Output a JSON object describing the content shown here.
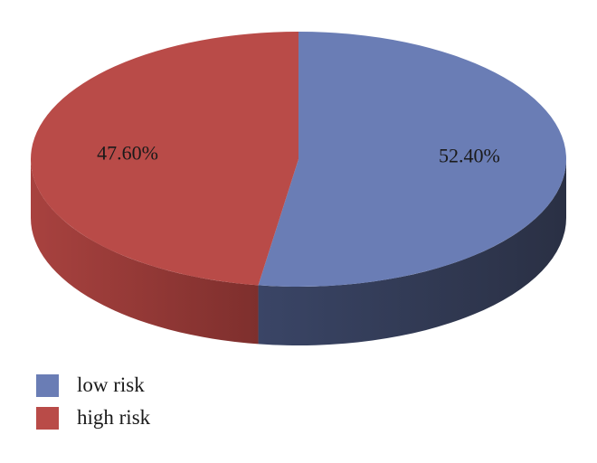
{
  "chart_data": {
    "type": "pie",
    "title": "",
    "categories": [
      "low risk",
      "high risk"
    ],
    "values": [
      52.4,
      47.6
    ],
    "data_labels": [
      "52.40%",
      "47.60%"
    ],
    "colors": [
      "#6a7db5",
      "#b94b48"
    ],
    "style": "3d",
    "legend_position": "bottom-left"
  },
  "legend": {
    "items": [
      {
        "label": "low risk",
        "color": "#6a7db5"
      },
      {
        "label": "high risk",
        "color": "#b94b48"
      }
    ]
  }
}
